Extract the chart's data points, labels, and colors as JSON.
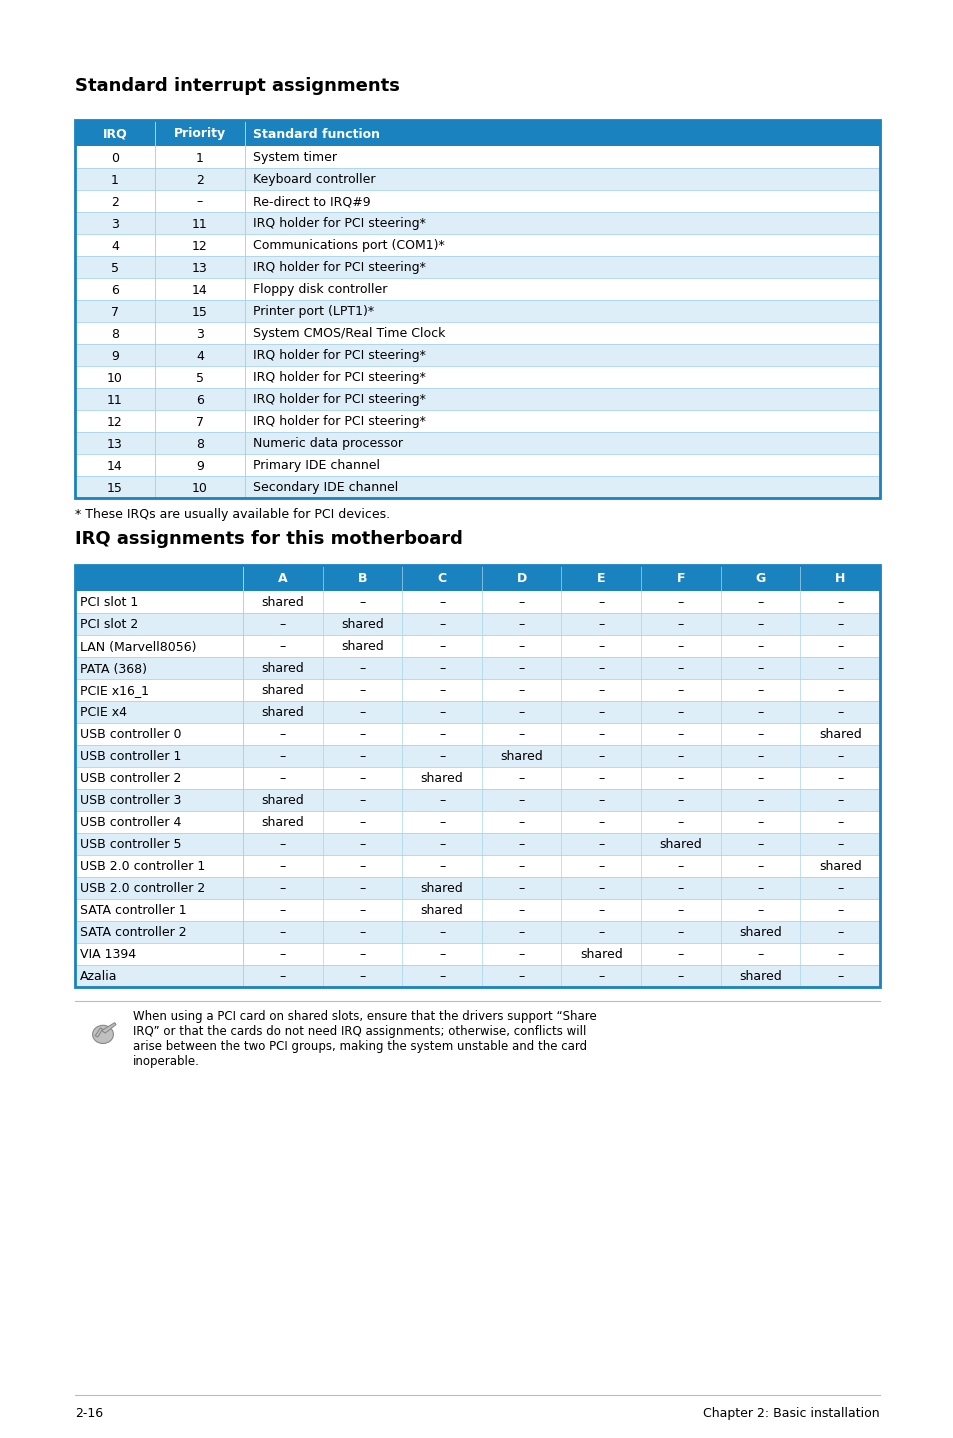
{
  "title1": "Standard interrupt assignments",
  "title2": "IRQ assignments for this motherboard",
  "table1_header": [
    "IRQ",
    "Priority",
    "Standard function"
  ],
  "table1_rows": [
    [
      "0",
      "1",
      "System timer"
    ],
    [
      "1",
      "2",
      "Keyboard controller"
    ],
    [
      "2",
      "–",
      "Re-direct to IRQ#9"
    ],
    [
      "3",
      "11",
      "IRQ holder for PCI steering*"
    ],
    [
      "4",
      "12",
      "Communications port (COM1)*"
    ],
    [
      "5",
      "13",
      "IRQ holder for PCI steering*"
    ],
    [
      "6",
      "14",
      "Floppy disk controller"
    ],
    [
      "7",
      "15",
      "Printer port (LPT1)*"
    ],
    [
      "8",
      "3",
      "System CMOS/Real Time Clock"
    ],
    [
      "9",
      "4",
      "IRQ holder for PCI steering*"
    ],
    [
      "10",
      "5",
      "IRQ holder for PCI steering*"
    ],
    [
      "11",
      "6",
      "IRQ holder for PCI steering*"
    ],
    [
      "12",
      "7",
      "IRQ holder for PCI steering*"
    ],
    [
      "13",
      "8",
      "Numeric data processor"
    ],
    [
      "14",
      "9",
      "Primary IDE channel"
    ],
    [
      "15",
      "10",
      "Secondary IDE channel"
    ]
  ],
  "footnote": "* These IRQs are usually available for PCI devices.",
  "table2_header": [
    "",
    "A",
    "B",
    "C",
    "D",
    "E",
    "F",
    "G",
    "H"
  ],
  "table2_rows": [
    [
      "PCI slot 1",
      "shared",
      "–",
      "–",
      "–",
      "–",
      "–",
      "–",
      "–"
    ],
    [
      "PCI slot 2",
      "–",
      "shared",
      "–",
      "–",
      "–",
      "–",
      "–",
      "–"
    ],
    [
      "LAN (Marvell8056)",
      "–",
      "shared",
      "–",
      "–",
      "–",
      "–",
      "–",
      "–"
    ],
    [
      "PATA (368)",
      "shared",
      "–",
      "–",
      "–",
      "–",
      "–",
      "–",
      "–"
    ],
    [
      "PCIE x16_1",
      "shared",
      "–",
      "–",
      "–",
      "–",
      "–",
      "–",
      "–"
    ],
    [
      "PCIE x4",
      "shared",
      "–",
      "–",
      "–",
      "–",
      "–",
      "–",
      "–"
    ],
    [
      "USB controller 0",
      "–",
      "–",
      "–",
      "–",
      "–",
      "–",
      "–",
      "shared"
    ],
    [
      "USB controller 1",
      "–",
      "–",
      "–",
      "shared",
      "–",
      "–",
      "–",
      "–"
    ],
    [
      "USB controller 2",
      "–",
      "–",
      "shared",
      "–",
      "–",
      "–",
      "–",
      "–"
    ],
    [
      "USB controller 3",
      "shared",
      "–",
      "–",
      "–",
      "–",
      "–",
      "–",
      "–"
    ],
    [
      "USB controller 4",
      "shared",
      "–",
      "–",
      "–",
      "–",
      "–",
      "–",
      "–"
    ],
    [
      "USB controller 5",
      "–",
      "–",
      "–",
      "–",
      "–",
      "shared",
      "–",
      "–"
    ],
    [
      "USB 2.0 controller 1",
      "–",
      "–",
      "–",
      "–",
      "–",
      "–",
      "–",
      "shared"
    ],
    [
      "USB 2.0 controller 2",
      "–",
      "–",
      "shared",
      "–",
      "–",
      "–",
      "–",
      "–"
    ],
    [
      "SATA controller 1",
      "–",
      "–",
      "shared",
      "–",
      "–",
      "–",
      "–",
      "–"
    ],
    [
      "SATA controller 2",
      "–",
      "–",
      "–",
      "–",
      "–",
      "–",
      "shared",
      "–"
    ],
    [
      "VIA 1394",
      "–",
      "–",
      "–",
      "–",
      "shared",
      "–",
      "–",
      "–"
    ],
    [
      "Azalia",
      "–",
      "–",
      "–",
      "–",
      "–",
      "–",
      "shared",
      "–"
    ]
  ],
  "note_lines": [
    "When using a PCI card on shared slots, ensure that the drivers support “Share",
    "IRQ” or that the cards do not need IRQ assignments; otherwise, conflicts will",
    "arise between the two PCI groups, making the system unstable and the card",
    "inoperable."
  ],
  "footer_left": "2-16",
  "footer_right": "Chapter 2: Basic installation",
  "header_bg": "#1a82be",
  "row_odd_bg": "#ffffff",
  "row_even_bg": "#deeef8",
  "border_color": "#1a82be",
  "cell_border_color": "#a8d4ec"
}
